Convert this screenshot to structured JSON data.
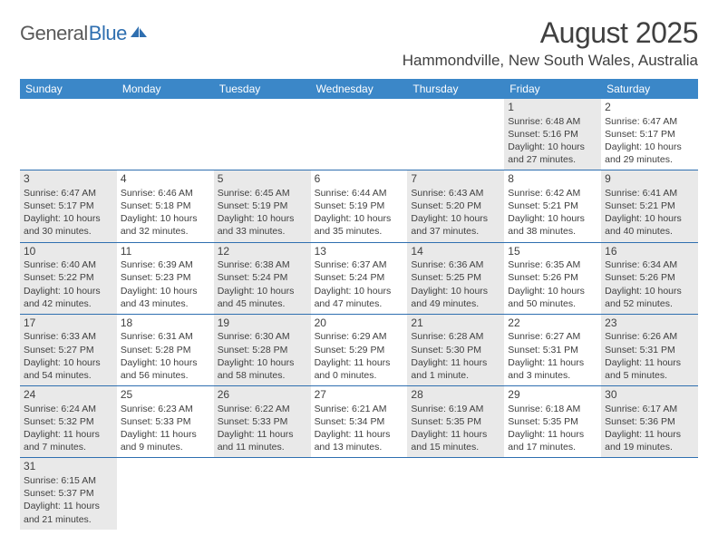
{
  "logo": {
    "text1": "General",
    "text2": "Blue"
  },
  "title": "August 2025",
  "location": "Hammondville, New South Wales, Australia",
  "colors": {
    "header_bg": "#3b87c8",
    "header_text": "#ffffff",
    "row_border": "#2f6fb0",
    "shaded_bg": "#e9e9e9",
    "text": "#404040",
    "logo_gray": "#5a5a5a",
    "logo_blue": "#2f6fb0"
  },
  "weekdays": [
    "Sunday",
    "Monday",
    "Tuesday",
    "Wednesday",
    "Thursday",
    "Friday",
    "Saturday"
  ],
  "weeks": [
    [
      {
        "blank": true,
        "shaded": false
      },
      {
        "blank": true,
        "shaded": false
      },
      {
        "blank": true,
        "shaded": false
      },
      {
        "blank": true,
        "shaded": false
      },
      {
        "blank": true,
        "shaded": false
      },
      {
        "num": "1",
        "shaded": true,
        "sunrise": "Sunrise: 6:48 AM",
        "sunset": "Sunset: 5:16 PM",
        "day1": "Daylight: 10 hours",
        "day2": "and 27 minutes."
      },
      {
        "num": "2",
        "shaded": false,
        "sunrise": "Sunrise: 6:47 AM",
        "sunset": "Sunset: 5:17 PM",
        "day1": "Daylight: 10 hours",
        "day2": "and 29 minutes."
      }
    ],
    [
      {
        "num": "3",
        "shaded": true,
        "sunrise": "Sunrise: 6:47 AM",
        "sunset": "Sunset: 5:17 PM",
        "day1": "Daylight: 10 hours",
        "day2": "and 30 minutes."
      },
      {
        "num": "4",
        "shaded": false,
        "sunrise": "Sunrise: 6:46 AM",
        "sunset": "Sunset: 5:18 PM",
        "day1": "Daylight: 10 hours",
        "day2": "and 32 minutes."
      },
      {
        "num": "5",
        "shaded": true,
        "sunrise": "Sunrise: 6:45 AM",
        "sunset": "Sunset: 5:19 PM",
        "day1": "Daylight: 10 hours",
        "day2": "and 33 minutes."
      },
      {
        "num": "6",
        "shaded": false,
        "sunrise": "Sunrise: 6:44 AM",
        "sunset": "Sunset: 5:19 PM",
        "day1": "Daylight: 10 hours",
        "day2": "and 35 minutes."
      },
      {
        "num": "7",
        "shaded": true,
        "sunrise": "Sunrise: 6:43 AM",
        "sunset": "Sunset: 5:20 PM",
        "day1": "Daylight: 10 hours",
        "day2": "and 37 minutes."
      },
      {
        "num": "8",
        "shaded": false,
        "sunrise": "Sunrise: 6:42 AM",
        "sunset": "Sunset: 5:21 PM",
        "day1": "Daylight: 10 hours",
        "day2": "and 38 minutes."
      },
      {
        "num": "9",
        "shaded": true,
        "sunrise": "Sunrise: 6:41 AM",
        "sunset": "Sunset: 5:21 PM",
        "day1": "Daylight: 10 hours",
        "day2": "and 40 minutes."
      }
    ],
    [
      {
        "num": "10",
        "shaded": true,
        "sunrise": "Sunrise: 6:40 AM",
        "sunset": "Sunset: 5:22 PM",
        "day1": "Daylight: 10 hours",
        "day2": "and 42 minutes."
      },
      {
        "num": "11",
        "shaded": false,
        "sunrise": "Sunrise: 6:39 AM",
        "sunset": "Sunset: 5:23 PM",
        "day1": "Daylight: 10 hours",
        "day2": "and 43 minutes."
      },
      {
        "num": "12",
        "shaded": true,
        "sunrise": "Sunrise: 6:38 AM",
        "sunset": "Sunset: 5:24 PM",
        "day1": "Daylight: 10 hours",
        "day2": "and 45 minutes."
      },
      {
        "num": "13",
        "shaded": false,
        "sunrise": "Sunrise: 6:37 AM",
        "sunset": "Sunset: 5:24 PM",
        "day1": "Daylight: 10 hours",
        "day2": "and 47 minutes."
      },
      {
        "num": "14",
        "shaded": true,
        "sunrise": "Sunrise: 6:36 AM",
        "sunset": "Sunset: 5:25 PM",
        "day1": "Daylight: 10 hours",
        "day2": "and 49 minutes."
      },
      {
        "num": "15",
        "shaded": false,
        "sunrise": "Sunrise: 6:35 AM",
        "sunset": "Sunset: 5:26 PM",
        "day1": "Daylight: 10 hours",
        "day2": "and 50 minutes."
      },
      {
        "num": "16",
        "shaded": true,
        "sunrise": "Sunrise: 6:34 AM",
        "sunset": "Sunset: 5:26 PM",
        "day1": "Daylight: 10 hours",
        "day2": "and 52 minutes."
      }
    ],
    [
      {
        "num": "17",
        "shaded": true,
        "sunrise": "Sunrise: 6:33 AM",
        "sunset": "Sunset: 5:27 PM",
        "day1": "Daylight: 10 hours",
        "day2": "and 54 minutes."
      },
      {
        "num": "18",
        "shaded": false,
        "sunrise": "Sunrise: 6:31 AM",
        "sunset": "Sunset: 5:28 PM",
        "day1": "Daylight: 10 hours",
        "day2": "and 56 minutes."
      },
      {
        "num": "19",
        "shaded": true,
        "sunrise": "Sunrise: 6:30 AM",
        "sunset": "Sunset: 5:28 PM",
        "day1": "Daylight: 10 hours",
        "day2": "and 58 minutes."
      },
      {
        "num": "20",
        "shaded": false,
        "sunrise": "Sunrise: 6:29 AM",
        "sunset": "Sunset: 5:29 PM",
        "day1": "Daylight: 11 hours",
        "day2": "and 0 minutes."
      },
      {
        "num": "21",
        "shaded": true,
        "sunrise": "Sunrise: 6:28 AM",
        "sunset": "Sunset: 5:30 PM",
        "day1": "Daylight: 11 hours",
        "day2": "and 1 minute."
      },
      {
        "num": "22",
        "shaded": false,
        "sunrise": "Sunrise: 6:27 AM",
        "sunset": "Sunset: 5:31 PM",
        "day1": "Daylight: 11 hours",
        "day2": "and 3 minutes."
      },
      {
        "num": "23",
        "shaded": true,
        "sunrise": "Sunrise: 6:26 AM",
        "sunset": "Sunset: 5:31 PM",
        "day1": "Daylight: 11 hours",
        "day2": "and 5 minutes."
      }
    ],
    [
      {
        "num": "24",
        "shaded": true,
        "sunrise": "Sunrise: 6:24 AM",
        "sunset": "Sunset: 5:32 PM",
        "day1": "Daylight: 11 hours",
        "day2": "and 7 minutes."
      },
      {
        "num": "25",
        "shaded": false,
        "sunrise": "Sunrise: 6:23 AM",
        "sunset": "Sunset: 5:33 PM",
        "day1": "Daylight: 11 hours",
        "day2": "and 9 minutes."
      },
      {
        "num": "26",
        "shaded": true,
        "sunrise": "Sunrise: 6:22 AM",
        "sunset": "Sunset: 5:33 PM",
        "day1": "Daylight: 11 hours",
        "day2": "and 11 minutes."
      },
      {
        "num": "27",
        "shaded": false,
        "sunrise": "Sunrise: 6:21 AM",
        "sunset": "Sunset: 5:34 PM",
        "day1": "Daylight: 11 hours",
        "day2": "and 13 minutes."
      },
      {
        "num": "28",
        "shaded": true,
        "sunrise": "Sunrise: 6:19 AM",
        "sunset": "Sunset: 5:35 PM",
        "day1": "Daylight: 11 hours",
        "day2": "and 15 minutes."
      },
      {
        "num": "29",
        "shaded": false,
        "sunrise": "Sunrise: 6:18 AM",
        "sunset": "Sunset: 5:35 PM",
        "day1": "Daylight: 11 hours",
        "day2": "and 17 minutes."
      },
      {
        "num": "30",
        "shaded": true,
        "sunrise": "Sunrise: 6:17 AM",
        "sunset": "Sunset: 5:36 PM",
        "day1": "Daylight: 11 hours",
        "day2": "and 19 minutes."
      }
    ],
    [
      {
        "num": "31",
        "shaded": true,
        "sunrise": "Sunrise: 6:15 AM",
        "sunset": "Sunset: 5:37 PM",
        "day1": "Daylight: 11 hours",
        "day2": "and 21 minutes."
      },
      {
        "blank": true,
        "shaded": false
      },
      {
        "blank": true,
        "shaded": false
      },
      {
        "blank": true,
        "shaded": false
      },
      {
        "blank": true,
        "shaded": false
      },
      {
        "blank": true,
        "shaded": false
      },
      {
        "blank": true,
        "shaded": false
      }
    ]
  ]
}
